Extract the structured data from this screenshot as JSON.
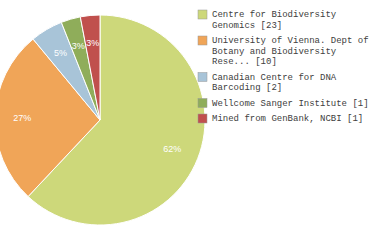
{
  "chart_data": {
    "type": "pie",
    "categories": [
      "Centre for Biodiversity\nGenomics [23]",
      "University of Vienna. Dept of\nBotany and Biodiversity\nRese... [10]",
      "Canadian Centre for DNA\nBarcoding [2]",
      "Wellcome Sanger Institute [1]",
      "Mined from GenBank, NCBI [1]"
    ],
    "values": [
      62,
      27,
      5,
      3,
      3
    ],
    "value_labels": [
      "62%",
      "27%",
      "5%",
      "3%",
      "3%"
    ],
    "colors": [
      "#cdd87a",
      "#f0a558",
      "#a8c4d8",
      "#8fad5a",
      "#c0504d"
    ],
    "data_labels": true,
    "legend": "right"
  }
}
